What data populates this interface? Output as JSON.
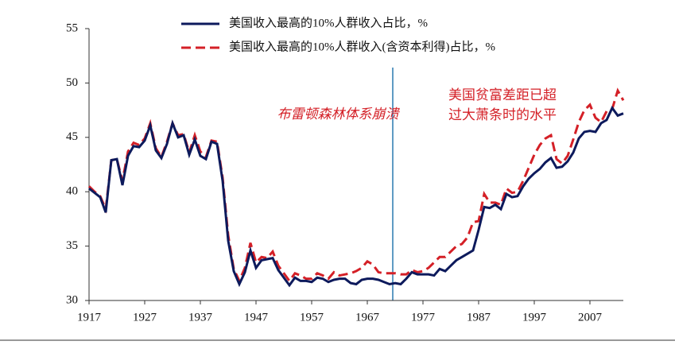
{
  "chart_data": {
    "type": "line",
    "x": [
      1917,
      1918,
      1919,
      1920,
      1921,
      1922,
      1923,
      1924,
      1925,
      1926,
      1927,
      1928,
      1929,
      1930,
      1931,
      1932,
      1933,
      1934,
      1935,
      1936,
      1937,
      1938,
      1939,
      1940,
      1941,
      1942,
      1943,
      1944,
      1945,
      1946,
      1947,
      1948,
      1949,
      1950,
      1951,
      1952,
      1953,
      1954,
      1955,
      1956,
      1957,
      1958,
      1959,
      1960,
      1961,
      1962,
      1963,
      1964,
      1965,
      1966,
      1967,
      1968,
      1969,
      1970,
      1971,
      1972,
      1973,
      1974,
      1975,
      1976,
      1977,
      1978,
      1979,
      1980,
      1981,
      1982,
      1983,
      1984,
      1985,
      1986,
      1987,
      1988,
      1989,
      1990,
      1991,
      1992,
      1993,
      1994,
      1995,
      1996,
      1997,
      1998,
      1999,
      2000,
      2001,
      2002,
      2003,
      2004,
      2005,
      2006,
      2007,
      2008,
      2009,
      2010,
      2011,
      2012,
      2013
    ],
    "series": [
      {
        "name": "美国收入最高的10%人群收入占比，%",
        "color": "#0d1a5c",
        "dashed": false,
        "values": [
          40.3,
          39.9,
          39.5,
          38.1,
          42.9,
          43.0,
          40.6,
          43.3,
          44.2,
          44.1,
          44.7,
          46.1,
          43.8,
          43.1,
          44.4,
          46.3,
          45.0,
          45.2,
          43.4,
          44.8,
          43.3,
          43.0,
          44.6,
          44.4,
          41.0,
          35.5,
          32.7,
          31.5,
          32.6,
          34.6,
          33.0,
          33.7,
          33.8,
          33.9,
          32.8,
          32.1,
          31.4,
          32.1,
          31.8,
          31.8,
          31.7,
          32.1,
          32.0,
          31.7,
          31.9,
          32.0,
          32.0,
          31.6,
          31.5,
          31.9,
          32.0,
          32.0,
          31.9,
          31.7,
          31.5,
          31.6,
          31.5,
          32.0,
          32.6,
          32.4,
          32.4,
          32.4,
          32.3,
          32.9,
          32.7,
          33.2,
          33.7,
          34.0,
          34.3,
          34.6,
          36.5,
          38.6,
          38.5,
          38.8,
          38.4,
          39.8,
          39.5,
          39.6,
          40.5,
          41.2,
          41.7,
          42.1,
          42.7,
          43.1,
          42.2,
          42.3,
          42.8,
          43.6,
          44.9,
          45.5,
          45.6,
          45.5,
          46.3,
          46.6,
          47.7,
          47.0,
          47.2
        ]
      },
      {
        "name": "美国收入最高的10%人群收入(含资本利得)占比，%",
        "color": "#d42027",
        "dashed": true,
        "values": [
          40.5,
          40.0,
          39.6,
          38.4,
          42.9,
          43.0,
          41.0,
          43.7,
          44.5,
          44.3,
          44.9,
          46.3,
          44.0,
          43.2,
          44.6,
          46.3,
          45.2,
          45.3,
          43.6,
          45.2,
          43.7,
          43.2,
          44.7,
          44.6,
          41.3,
          36.0,
          32.9,
          31.8,
          33.0,
          35.3,
          33.5,
          34.0,
          33.9,
          34.5,
          33.2,
          32.5,
          31.8,
          32.5,
          32.3,
          32.0,
          32.0,
          32.5,
          32.3,
          32.0,
          32.6,
          32.3,
          32.4,
          32.5,
          32.7,
          33.0,
          33.6,
          33.3,
          32.6,
          32.5,
          32.5,
          32.5,
          32.4,
          32.4,
          32.8,
          32.6,
          32.7,
          33.0,
          33.5,
          34.0,
          34.0,
          34.5,
          35.0,
          35.2,
          35.8,
          37.2,
          37.3,
          39.8,
          39.0,
          39.0,
          38.8,
          40.3,
          39.9,
          40.0,
          41.0,
          42.2,
          43.4,
          44.3,
          44.9,
          45.2,
          43.0,
          42.6,
          43.3,
          44.8,
          46.4,
          47.5,
          48.0,
          46.8,
          46.4,
          47.4,
          47.6,
          49.3,
          48.4
        ]
      }
    ],
    "annotations": [
      "布雷顿森林体系崩溃",
      "美国贫富差距已超",
      "过大萧条时的水平"
    ],
    "xlim": [
      1917,
      2013
    ],
    "ylim": [
      30,
      55
    ],
    "xticks": [
      1917,
      1927,
      1937,
      1947,
      1957,
      1967,
      1977,
      1987,
      1997,
      2007
    ],
    "yticks": [
      30,
      35,
      40,
      45,
      50,
      55
    ]
  }
}
